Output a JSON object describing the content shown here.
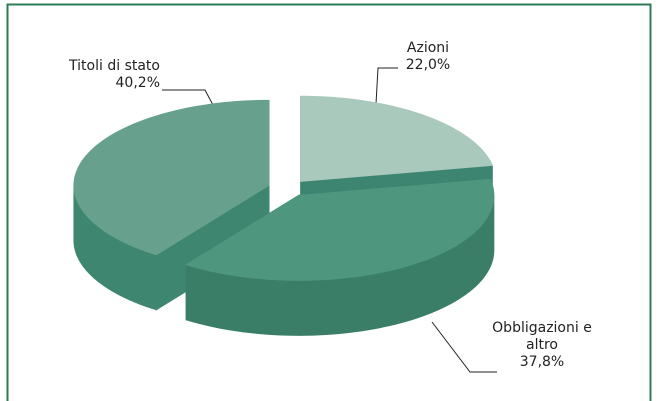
{
  "chart_data": {
    "type": "pie3d",
    "categories": [
      "Azioni",
      "Obbligazioni e altro",
      "Titoli di stato"
    ],
    "values": [
      22.0,
      37.8,
      40.2
    ],
    "value_labels": [
      "22,0%",
      "37,8%",
      "40,2%"
    ],
    "colors": [
      "#a9c9bd",
      "#4f967f",
      "#67a18d"
    ],
    "side_colors": [
      "#3d8570",
      "#3a7e68",
      "#3e8670"
    ]
  }
}
